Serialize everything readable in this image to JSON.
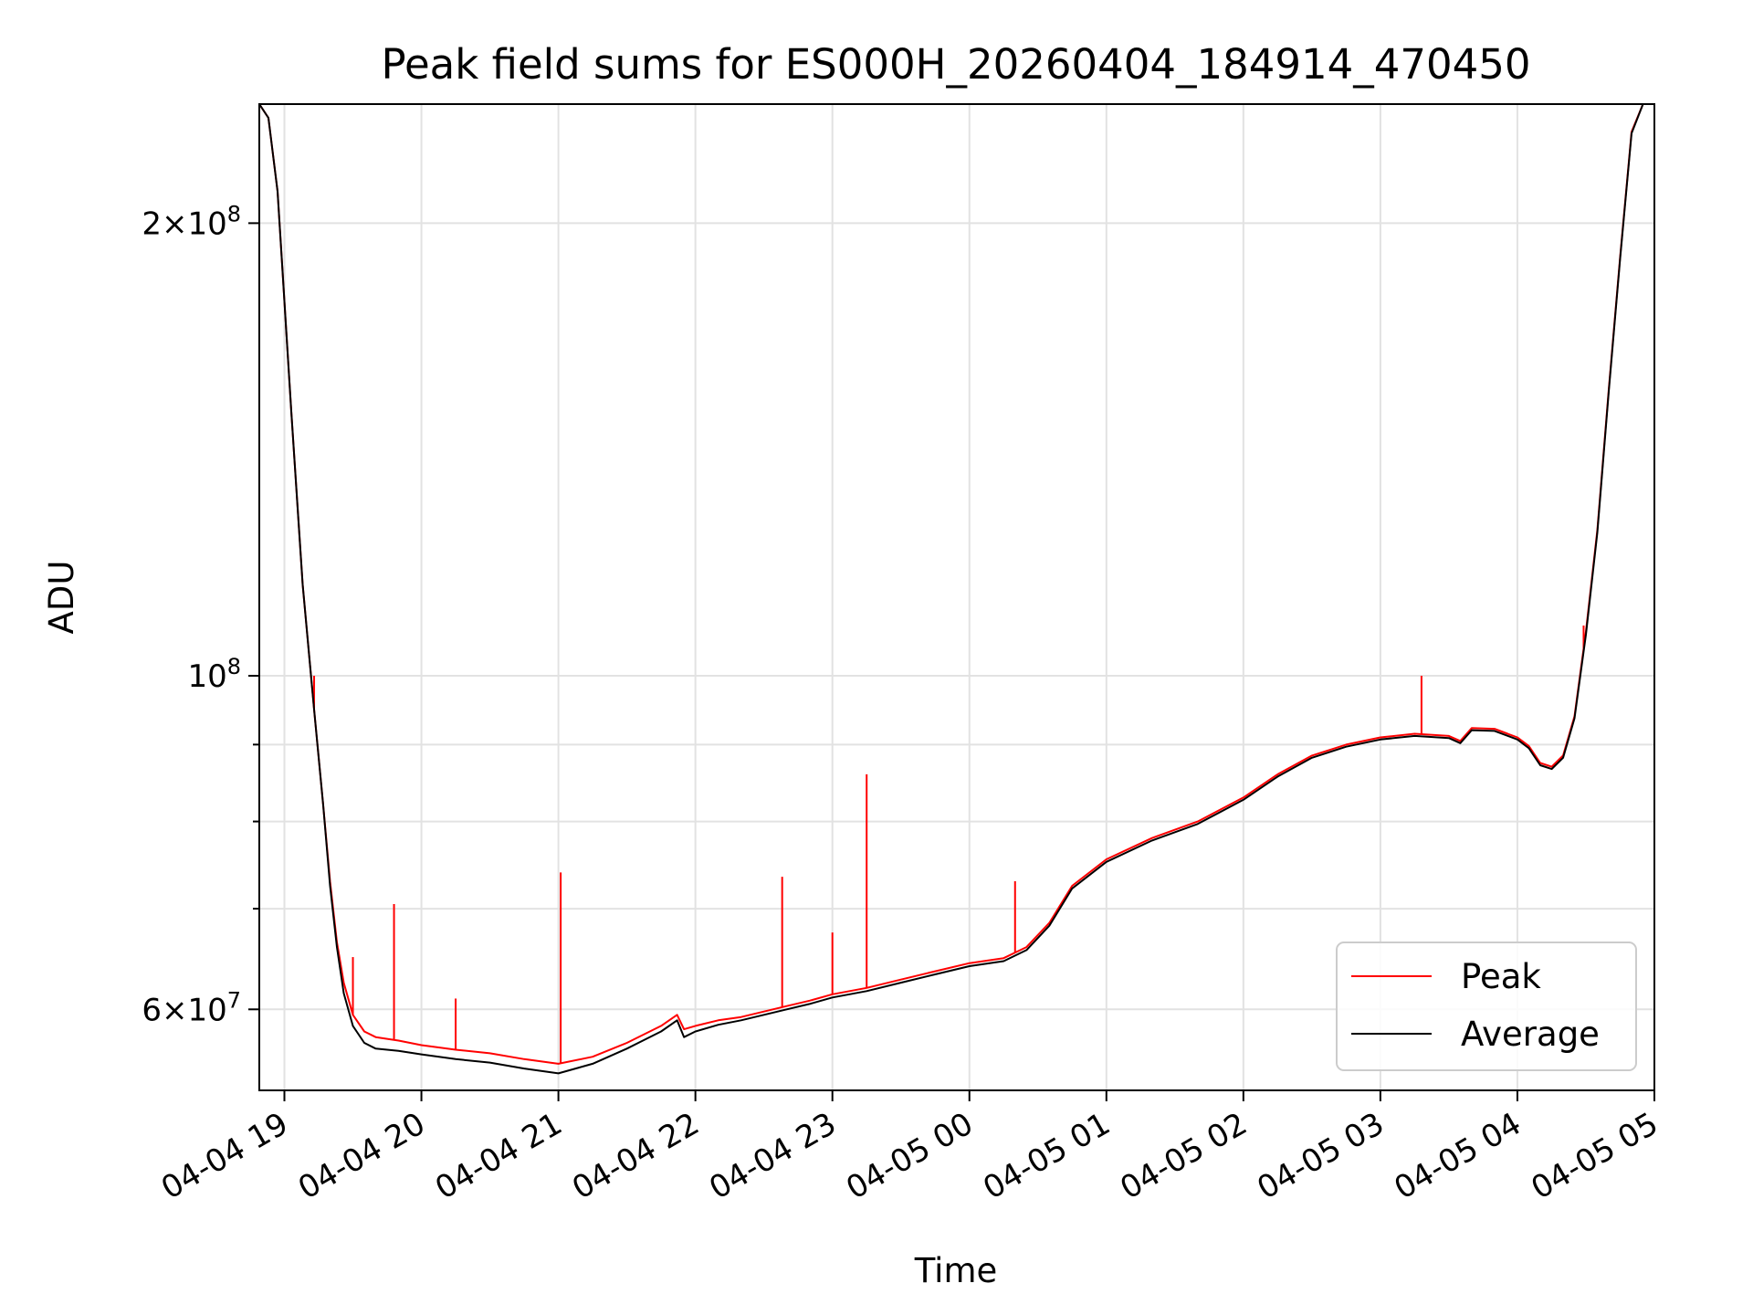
{
  "chart_data": {
    "type": "line",
    "title": "Peak field sums for ES000H_20260404_184914_470450",
    "xlabel": "Time",
    "ylabel": "ADU",
    "y_scale": "log",
    "xlim": [
      "2026-04-04 18:49",
      "2026-04-05 05:00"
    ],
    "ylim": [
      53000000,
      240000000
    ],
    "grid": true,
    "legend_position": "lower-right",
    "x_ticks": [
      {
        "value": "2026-04-04 19:00",
        "label": "04-04 19"
      },
      {
        "value": "2026-04-04 20:00",
        "label": "04-04 20"
      },
      {
        "value": "2026-04-04 21:00",
        "label": "04-04 21"
      },
      {
        "value": "2026-04-04 22:00",
        "label": "04-04 22"
      },
      {
        "value": "2026-04-04 23:00",
        "label": "04-04 23"
      },
      {
        "value": "2026-04-05 00:00",
        "label": "04-05 00"
      },
      {
        "value": "2026-04-05 01:00",
        "label": "04-05 01"
      },
      {
        "value": "2026-04-05 02:00",
        "label": "04-05 02"
      },
      {
        "value": "2026-04-05 03:00",
        "label": "04-05 03"
      },
      {
        "value": "2026-04-05 04:00",
        "label": "04-05 04"
      },
      {
        "value": "2026-04-05 05:00",
        "label": "04-05 05"
      }
    ],
    "y_major_ticks": [
      {
        "value": 60000000,
        "mantissa": "6",
        "exponent": "7"
      },
      {
        "value": 100000000,
        "mantissa": "",
        "exponent": "8"
      },
      {
        "value": 200000000,
        "mantissa": "2",
        "exponent": "8"
      }
    ],
    "y_minor_ticks": [
      70000000,
      80000000,
      90000000
    ],
    "series": [
      {
        "name": "Peak",
        "color": "#ff0000",
        "x": [
          "2026-04-04 18:49",
          "2026-04-04 18:53",
          "2026-04-04 18:57",
          "2026-04-04 19:03",
          "2026-04-04 19:08",
          "2026-04-04 19:13",
          "2026-04-04 19:17",
          "2026-04-04 19:20",
          "2026-04-04 19:23",
          "2026-04-04 19:26",
          "2026-04-04 19:30",
          "2026-04-04 19:35",
          "2026-04-04 19:40",
          "2026-04-04 19:50",
          "2026-04-04 20:00",
          "2026-04-04 20:15",
          "2026-04-04 20:30",
          "2026-04-04 20:45",
          "2026-04-04 21:00",
          "2026-04-04 21:15",
          "2026-04-04 21:30",
          "2026-04-04 21:45",
          "2026-04-04 21:52",
          "2026-04-04 21:55",
          "2026-04-04 22:00",
          "2026-04-04 22:10",
          "2026-04-04 22:20",
          "2026-04-04 22:30",
          "2026-04-04 22:40",
          "2026-04-04 22:50",
          "2026-04-04 23:00",
          "2026-04-04 23:15",
          "2026-04-04 23:30",
          "2026-04-04 23:45",
          "2026-04-05 00:00",
          "2026-04-05 00:15",
          "2026-04-05 00:25",
          "2026-04-05 00:35",
          "2026-04-05 00:45",
          "2026-04-05 01:00",
          "2026-04-05 01:20",
          "2026-04-05 01:40",
          "2026-04-05 02:00",
          "2026-04-05 02:15",
          "2026-04-05 02:30",
          "2026-04-05 02:45",
          "2026-04-05 03:00",
          "2026-04-05 03:15",
          "2026-04-05 03:30",
          "2026-04-05 03:35",
          "2026-04-05 03:40",
          "2026-04-05 03:50",
          "2026-04-05 04:00",
          "2026-04-05 04:05",
          "2026-04-05 04:10",
          "2026-04-05 04:15",
          "2026-04-05 04:20",
          "2026-04-05 04:25",
          "2026-04-05 04:30",
          "2026-04-05 04:35",
          "2026-04-05 04:40",
          "2026-04-05 04:45",
          "2026-04-05 04:50",
          "2026-04-05 04:55",
          "2026-04-05 05:00"
        ],
        "y": [
          240000000,
          235000000,
          210000000,
          150000000,
          115000000,
          95000000,
          82000000,
          73000000,
          66500000,
          62500000,
          59500000,
          58000000,
          57500000,
          57200000,
          56800000,
          56400000,
          56100000,
          55600000,
          55200000,
          55800000,
          57000000,
          58500000,
          59500000,
          58200000,
          58500000,
          59000000,
          59300000,
          59800000,
          60300000,
          60800000,
          61400000,
          62000000,
          62800000,
          63600000,
          64400000,
          64900000,
          66000000,
          68500000,
          72500000,
          75500000,
          78000000,
          80000000,
          83000000,
          86000000,
          88500000,
          90000000,
          91000000,
          91500000,
          91200000,
          90500000,
          92300000,
          92200000,
          91000000,
          89800000,
          87500000,
          87000000,
          88500000,
          94000000,
          107000000,
          125000000,
          155000000,
          190000000,
          230000000,
          240000000,
          240000000
        ],
        "spikes": [
          {
            "x": "2026-04-04 19:13",
            "y": 100000000
          },
          {
            "x": "2026-04-04 19:30",
            "y": 65000000
          },
          {
            "x": "2026-04-04 19:48",
            "y": 70500000
          },
          {
            "x": "2026-04-04 20:15",
            "y": 61000000
          },
          {
            "x": "2026-04-04 21:01",
            "y": 74000000
          },
          {
            "x": "2026-04-04 22:38",
            "y": 73500000
          },
          {
            "x": "2026-04-04 23:00",
            "y": 67500000
          },
          {
            "x": "2026-04-04 23:15",
            "y": 86000000
          },
          {
            "x": "2026-04-05 00:20",
            "y": 73000000
          },
          {
            "x": "2026-04-05 03:18",
            "y": 100000000
          },
          {
            "x": "2026-04-05 04:29",
            "y": 108000000
          }
        ]
      },
      {
        "name": "Average",
        "color": "#000000",
        "x": [
          "2026-04-04 18:49",
          "2026-04-04 18:53",
          "2026-04-04 18:57",
          "2026-04-04 19:03",
          "2026-04-04 19:08",
          "2026-04-04 19:13",
          "2026-04-04 19:17",
          "2026-04-04 19:20",
          "2026-04-04 19:23",
          "2026-04-04 19:26",
          "2026-04-04 19:30",
          "2026-04-04 19:35",
          "2026-04-04 19:40",
          "2026-04-04 19:50",
          "2026-04-04 20:00",
          "2026-04-04 20:15",
          "2026-04-04 20:30",
          "2026-04-04 20:45",
          "2026-04-04 21:00",
          "2026-04-04 21:15",
          "2026-04-04 21:30",
          "2026-04-04 21:45",
          "2026-04-04 21:52",
          "2026-04-04 21:55",
          "2026-04-04 22:00",
          "2026-04-04 22:10",
          "2026-04-04 22:20",
          "2026-04-04 22:30",
          "2026-04-04 22:40",
          "2026-04-04 22:50",
          "2026-04-04 23:00",
          "2026-04-04 23:15",
          "2026-04-04 23:30",
          "2026-04-04 23:45",
          "2026-04-05 00:00",
          "2026-04-05 00:15",
          "2026-04-05 00:25",
          "2026-04-05 00:35",
          "2026-04-05 00:45",
          "2026-04-05 01:00",
          "2026-04-05 01:20",
          "2026-04-05 01:40",
          "2026-04-05 02:00",
          "2026-04-05 02:15",
          "2026-04-05 02:30",
          "2026-04-05 02:45",
          "2026-04-05 03:00",
          "2026-04-05 03:15",
          "2026-04-05 03:30",
          "2026-04-05 03:35",
          "2026-04-05 03:40",
          "2026-04-05 03:50",
          "2026-04-05 04:00",
          "2026-04-05 04:05",
          "2026-04-05 04:10",
          "2026-04-05 04:15",
          "2026-04-05 04:20",
          "2026-04-05 04:25",
          "2026-04-05 04:30",
          "2026-04-05 04:35",
          "2026-04-05 04:40",
          "2026-04-05 04:45",
          "2026-04-05 04:50",
          "2026-04-05 04:55",
          "2026-04-05 05:00"
        ],
        "y": [
          240000000,
          235000000,
          210000000,
          150000000,
          115000000,
          95000000,
          82000000,
          72500000,
          66000000,
          61500000,
          58500000,
          57000000,
          56500000,
          56300000,
          56000000,
          55600000,
          55300000,
          54800000,
          54400000,
          55200000,
          56500000,
          58000000,
          59000000,
          57500000,
          58000000,
          58600000,
          59000000,
          59500000,
          60000000,
          60500000,
          61100000,
          61700000,
          62500000,
          63300000,
          64100000,
          64600000,
          65700000,
          68200000,
          72200000,
          75200000,
          77700000,
          79700000,
          82700000,
          85700000,
          88200000,
          89700000,
          90700000,
          91200000,
          90900000,
          90200000,
          92000000,
          91900000,
          90700000,
          89500000,
          87200000,
          86700000,
          88200000,
          93700000,
          106500000,
          124500000,
          154500000,
          189500000,
          229500000,
          240000000,
          240000000
        ]
      }
    ]
  }
}
